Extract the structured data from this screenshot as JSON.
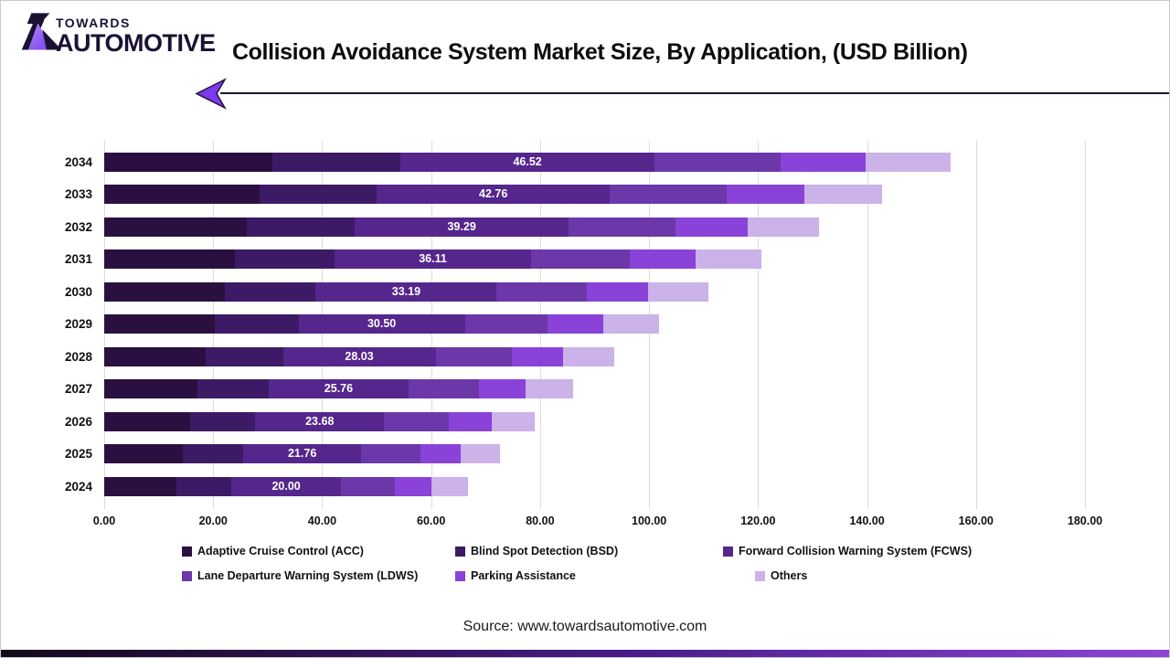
{
  "header": {
    "logo_line1": "TOWARDS",
    "logo_line2": "AUTOMOTIVE",
    "title": "Collision Avoidance System Market Size, By Application, (USD Billion)"
  },
  "footer": {
    "source": "Source: www.towardsautomotive.com"
  },
  "colors": {
    "divider": "#1c1530",
    "arrow_fill": "#7c3aed",
    "arrow_stroke": "#241436",
    "logo_dark": "#1b1233",
    "logo_accent": "#8b5cf6",
    "bottom_bar_left": "#120a1c",
    "bottom_bar_mid": "#4a1d8a",
    "bottom_bar_right": "#8d44d6"
  },
  "chart_data": {
    "type": "bar",
    "orientation": "horizontal",
    "stacked": true,
    "title": "Collision Avoidance System Market Size, By Application, (USD Billion)",
    "xlabel": "",
    "ylabel": "",
    "xlim": [
      0,
      180
    ],
    "x_ticks": [
      "0.00",
      "20.00",
      "40.00",
      "60.00",
      "80.00",
      "100.00",
      "120.00",
      "140.00",
      "160.00",
      "180.00"
    ],
    "grid": "vertical",
    "legend_position": "bottom",
    "categories": [
      "2034",
      "2033",
      "2032",
      "2031",
      "2030",
      "2029",
      "2028",
      "2027",
      "2026",
      "2025",
      "2024"
    ],
    "series": [
      {
        "name": "Adaptive Cruise Control (ACC)",
        "color": "#2a1040",
        "values": [
          30.94,
          28.44,
          26.13,
          24.01,
          22.07,
          20.28,
          18.64,
          17.13,
          15.75,
          14.47,
          13.3
        ]
      },
      {
        "name": "Blind Spot Detection (BSD)",
        "color": "#3d1a66",
        "values": [
          23.49,
          21.59,
          19.84,
          18.24,
          16.76,
          15.4,
          14.16,
          13.01,
          11.96,
          10.99,
          10.1
        ]
      },
      {
        "name": "Forward Collision Warning System (FCWS)",
        "color": "#55268c",
        "values": [
          46.52,
          42.76,
          39.29,
          36.11,
          33.19,
          30.5,
          28.03,
          25.76,
          23.68,
          21.76,
          20.0
        ]
      },
      {
        "name": "Lane Departure Warning System (LDWS)",
        "color": "#6b37a9",
        "values": [
          23.26,
          21.38,
          19.65,
          18.06,
          16.6,
          15.25,
          14.02,
          12.88,
          11.84,
          10.88,
          10.0
        ]
      },
      {
        "name": "Parking Assistance",
        "color": "#8a42d8",
        "values": [
          15.58,
          14.32,
          13.16,
          12.1,
          11.12,
          10.22,
          9.39,
          8.63,
          7.93,
          7.29,
          6.7
        ]
      },
      {
        "name": "Others",
        "color": "#cbb2e8",
        "values": [
          15.58,
          14.32,
          13.16,
          12.1,
          11.12,
          10.22,
          9.39,
          8.63,
          7.93,
          7.29,
          6.7
        ]
      }
    ],
    "bar_labels": {
      "labeled_series": "Forward Collision Warning System (FCWS)",
      "values": [
        "46.52",
        "42.76",
        "39.29",
        "36.11",
        "33.19",
        "30.50",
        "28.03",
        "25.76",
        "23.68",
        "21.76",
        "20.00"
      ]
    }
  }
}
